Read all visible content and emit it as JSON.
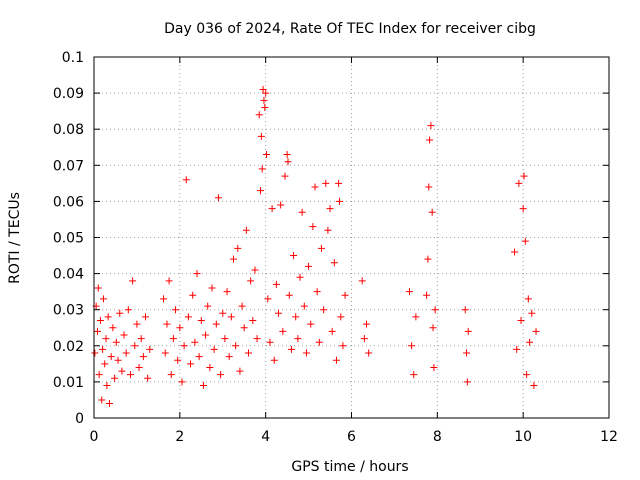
{
  "chart_data": {
    "type": "scatter",
    "title": "Day 036 of 2024, Rate Of TEC Index for receiver cibg",
    "xlabel": "GPS time / hours",
    "ylabel": "ROTI / TECUs",
    "xlim": [
      0,
      12
    ],
    "ylim": [
      0,
      0.1
    ],
    "grid": true,
    "marker": "plus",
    "color": "#ff0000",
    "x_ticks": [
      0,
      2,
      4,
      6,
      8,
      10,
      12
    ],
    "x_tick_labels": [
      "0",
      "2",
      "4",
      "6",
      "8",
      "10",
      "12"
    ],
    "y_ticks": [
      0,
      0.01,
      0.02,
      0.03,
      0.04,
      0.05,
      0.06,
      0.07,
      0.08,
      0.09,
      0.1
    ],
    "y_tick_labels": [
      "0",
      "0.01",
      "0.02",
      "0.03",
      "0.04",
      "0.05",
      "0.06",
      "0.07",
      "0.08",
      "0.09",
      "0.1"
    ],
    "series": [
      {
        "name": "ROTI",
        "points": [
          [
            0.02,
            0.018
          ],
          [
            0.05,
            0.031
          ],
          [
            0.08,
            0.024
          ],
          [
            0.1,
            0.036
          ],
          [
            0.12,
            0.012
          ],
          [
            0.15,
            0.027
          ],
          [
            0.18,
            0.005
          ],
          [
            0.2,
            0.019
          ],
          [
            0.22,
            0.033
          ],
          [
            0.25,
            0.015
          ],
          [
            0.28,
            0.022
          ],
          [
            0.3,
            0.009
          ],
          [
            0.33,
            0.028
          ],
          [
            0.36,
            0.004
          ],
          [
            0.4,
            0.017
          ],
          [
            0.44,
            0.025
          ],
          [
            0.48,
            0.011
          ],
          [
            0.52,
            0.021
          ],
          [
            0.56,
            0.016
          ],
          [
            0.6,
            0.029
          ],
          [
            0.65,
            0.013
          ],
          [
            0.7,
            0.023
          ],
          [
            0.75,
            0.018
          ],
          [
            0.8,
            0.03
          ],
          [
            0.85,
            0.012
          ],
          [
            0.9,
            0.038
          ],
          [
            0.95,
            0.02
          ],
          [
            1.0,
            0.026
          ],
          [
            1.05,
            0.014
          ],
          [
            1.1,
            0.022
          ],
          [
            1.15,
            0.017
          ],
          [
            1.2,
            0.028
          ],
          [
            1.25,
            0.011
          ],
          [
            1.3,
            0.019
          ],
          [
            1.62,
            0.033
          ],
          [
            1.66,
            0.018
          ],
          [
            1.7,
            0.026
          ],
          [
            1.75,
            0.038
          ],
          [
            1.8,
            0.012
          ],
          [
            1.85,
            0.022
          ],
          [
            1.9,
            0.03
          ],
          [
            1.95,
            0.016
          ],
          [
            2.0,
            0.025
          ],
          [
            2.05,
            0.01
          ],
          [
            2.1,
            0.02
          ],
          [
            2.15,
            0.066
          ],
          [
            2.2,
            0.028
          ],
          [
            2.25,
            0.015
          ],
          [
            2.3,
            0.034
          ],
          [
            2.35,
            0.021
          ],
          [
            2.4,
            0.04
          ],
          [
            2.45,
            0.017
          ],
          [
            2.5,
            0.027
          ],
          [
            2.55,
            0.009
          ],
          [
            2.6,
            0.023
          ],
          [
            2.65,
            0.031
          ],
          [
            2.7,
            0.014
          ],
          [
            2.75,
            0.036
          ],
          [
            2.8,
            0.019
          ],
          [
            2.85,
            0.026
          ],
          [
            2.9,
            0.061
          ],
          [
            2.95,
            0.012
          ],
          [
            3.0,
            0.029
          ],
          [
            3.05,
            0.022
          ],
          [
            3.1,
            0.035
          ],
          [
            3.15,
            0.017
          ],
          [
            3.2,
            0.028
          ],
          [
            3.25,
            0.044
          ],
          [
            3.3,
            0.02
          ],
          [
            3.35,
            0.047
          ],
          [
            3.4,
            0.013
          ],
          [
            3.45,
            0.031
          ],
          [
            3.5,
            0.025
          ],
          [
            3.55,
            0.052
          ],
          [
            3.6,
            0.018
          ],
          [
            3.65,
            0.038
          ],
          [
            3.7,
            0.027
          ],
          [
            3.75,
            0.041
          ],
          [
            3.8,
            0.022
          ],
          [
            3.85,
            0.084
          ],
          [
            3.88,
            0.063
          ],
          [
            3.9,
            0.078
          ],
          [
            3.92,
            0.069
          ],
          [
            3.94,
            0.091
          ],
          [
            3.96,
            0.088
          ],
          [
            3.98,
            0.086
          ],
          [
            4.0,
            0.09
          ],
          [
            4.02,
            0.073
          ],
          [
            4.05,
            0.033
          ],
          [
            4.1,
            0.021
          ],
          [
            4.15,
            0.058
          ],
          [
            4.2,
            0.016
          ],
          [
            4.25,
            0.037
          ],
          [
            4.3,
            0.029
          ],
          [
            4.35,
            0.059
          ],
          [
            4.4,
            0.024
          ],
          [
            4.45,
            0.067
          ],
          [
            4.5,
            0.073
          ],
          [
            4.52,
            0.071
          ],
          [
            4.55,
            0.034
          ],
          [
            4.6,
            0.019
          ],
          [
            4.65,
            0.045
          ],
          [
            4.7,
            0.028
          ],
          [
            4.75,
            0.022
          ],
          [
            4.8,
            0.039
          ],
          [
            4.85,
            0.057
          ],
          [
            4.9,
            0.031
          ],
          [
            4.95,
            0.018
          ],
          [
            5.0,
            0.042
          ],
          [
            5.05,
            0.026
          ],
          [
            5.1,
            0.053
          ],
          [
            5.15,
            0.064
          ],
          [
            5.2,
            0.035
          ],
          [
            5.25,
            0.021
          ],
          [
            5.3,
            0.047
          ],
          [
            5.35,
            0.03
          ],
          [
            5.4,
            0.065
          ],
          [
            5.45,
            0.052
          ],
          [
            5.5,
            0.058
          ],
          [
            5.55,
            0.024
          ],
          [
            5.6,
            0.043
          ],
          [
            5.65,
            0.016
          ],
          [
            5.7,
            0.065
          ],
          [
            5.72,
            0.06
          ],
          [
            5.75,
            0.028
          ],
          [
            5.8,
            0.02
          ],
          [
            5.85,
            0.034
          ],
          [
            6.25,
            0.038
          ],
          [
            6.3,
            0.022
          ],
          [
            6.35,
            0.026
          ],
          [
            6.4,
            0.018
          ],
          [
            7.35,
            0.035
          ],
          [
            7.4,
            0.02
          ],
          [
            7.45,
            0.012
          ],
          [
            7.5,
            0.028
          ],
          [
            7.75,
            0.034
          ],
          [
            7.78,
            0.044
          ],
          [
            7.8,
            0.064
          ],
          [
            7.82,
            0.077
          ],
          [
            7.85,
            0.081
          ],
          [
            7.88,
            0.057
          ],
          [
            7.9,
            0.025
          ],
          [
            7.92,
            0.014
          ],
          [
            7.95,
            0.03
          ],
          [
            8.65,
            0.03
          ],
          [
            8.68,
            0.018
          ],
          [
            8.7,
            0.01
          ],
          [
            8.72,
            0.024
          ],
          [
            9.8,
            0.046
          ],
          [
            9.85,
            0.019
          ],
          [
            9.9,
            0.065
          ],
          [
            9.95,
            0.027
          ],
          [
            10.0,
            0.058
          ],
          [
            10.02,
            0.067
          ],
          [
            10.05,
            0.049
          ],
          [
            10.08,
            0.012
          ],
          [
            10.12,
            0.033
          ],
          [
            10.15,
            0.021
          ],
          [
            10.2,
            0.029
          ],
          [
            10.25,
            0.009
          ],
          [
            10.3,
            0.024
          ]
        ]
      }
    ]
  }
}
